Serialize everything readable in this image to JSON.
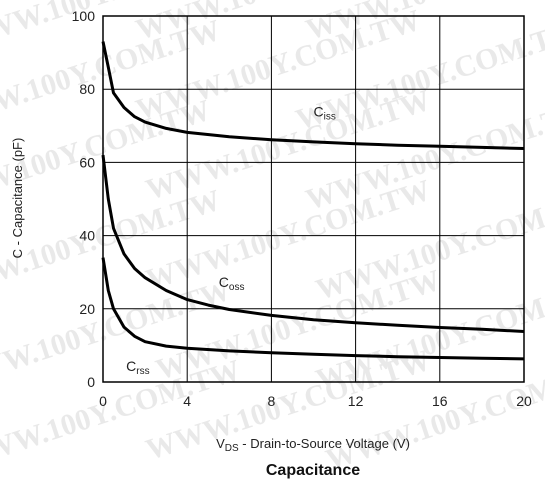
{
  "chart_data": {
    "type": "line",
    "title": "",
    "caption": "Capacitance",
    "watermark": "WWW.100Y.COM.TW",
    "xlabel": {
      "main": "V",
      "sub": "DS",
      "rest": " - Drain-to-Source Voltage (V)"
    },
    "ylabel": "C - Capacitance (pF)",
    "xlim": [
      0,
      20
    ],
    "ylim": [
      0,
      100
    ],
    "xticks": [
      0,
      4,
      8,
      12,
      16,
      20
    ],
    "yticks": [
      0,
      20,
      40,
      60,
      80,
      100
    ],
    "grid": true,
    "line_color": "#000000",
    "series": [
      {
        "name": "Ciss",
        "label_main": "C",
        "label_sub": "iss",
        "x": [
          0,
          0.25,
          0.5,
          1,
          1.5,
          2,
          3,
          4,
          6,
          8,
          10,
          12,
          14,
          16,
          18,
          20
        ],
        "y": [
          93,
          86,
          79,
          75,
          72.5,
          71,
          69.3,
          68.2,
          67,
          66.2,
          65.6,
          65.1,
          64.7,
          64.4,
          64.1,
          63.8
        ]
      },
      {
        "name": "Coss",
        "label_main": "C",
        "label_sub": "oss",
        "x": [
          0,
          0.25,
          0.5,
          1,
          1.5,
          2,
          3,
          4,
          5,
          6,
          8,
          10,
          12,
          14,
          16,
          18,
          20
        ],
        "y": [
          62,
          50,
          42,
          35,
          31,
          28.5,
          25,
          22.5,
          21,
          19.8,
          18.2,
          17,
          16.2,
          15.5,
          14.9,
          14.4,
          13.8
        ]
      },
      {
        "name": "Crss",
        "label_main": "C",
        "label_sub": "rss",
        "x": [
          0,
          0.25,
          0.5,
          1,
          1.5,
          2,
          3,
          4,
          6,
          8,
          10,
          12,
          14,
          16,
          18,
          20
        ],
        "y": [
          34,
          25,
          20,
          15,
          12.5,
          11,
          9.8,
          9.2,
          8.5,
          8,
          7.6,
          7.2,
          6.9,
          6.7,
          6.5,
          6.3
        ]
      }
    ]
  }
}
